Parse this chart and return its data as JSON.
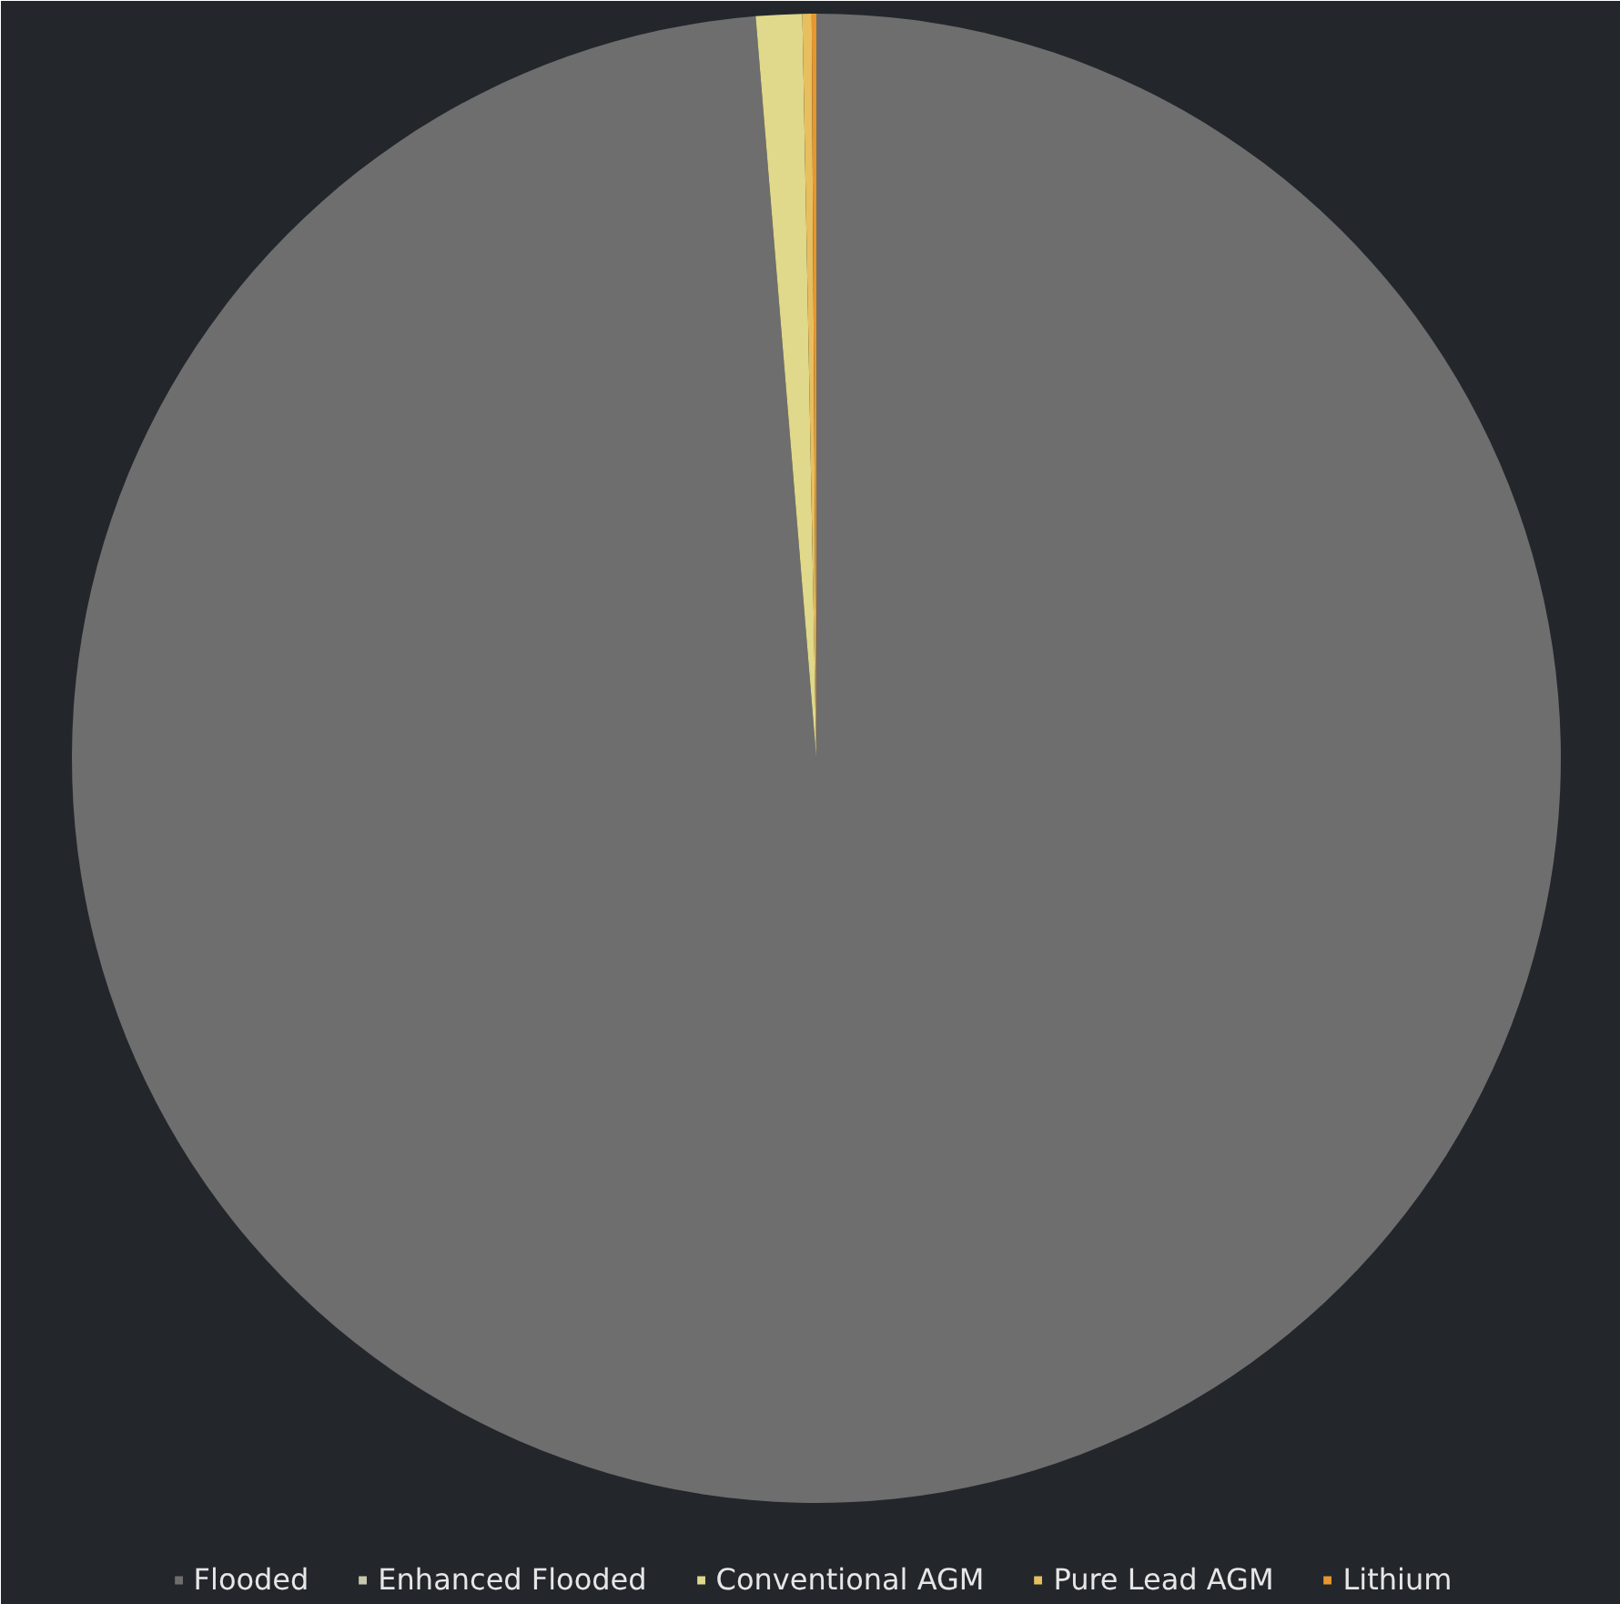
{
  "chart_data": {
    "type": "pie",
    "categories": [
      "Flooded",
      "Enhanced Flooded",
      "Conventional AGM",
      "Pure Lead AGM",
      "Lithium"
    ],
    "values": [
      98.7,
      0,
      1.0,
      0.2,
      0.1
    ],
    "colors": [
      "#6e6e6e",
      "#c6c9ad",
      "#e0d88a",
      "#e8bf5e",
      "#e8962e"
    ],
    "legend": "bottom"
  }
}
